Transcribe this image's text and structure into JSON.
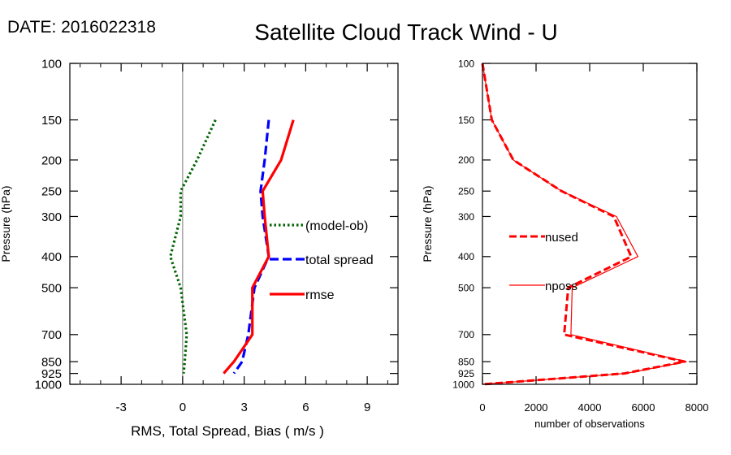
{
  "date_label": "DATE: 2016022318",
  "title": "Satellite Cloud Track Wind - U",
  "colors": {
    "model_ob": "#006400",
    "total_spread": "#0000ff",
    "rmse": "#ff0000",
    "zero_line": "#999999"
  },
  "chart_data": [
    {
      "type": "line",
      "name": "left-panel",
      "xlabel": "RMS, Total Spread, Bias ( m/s )",
      "ylabel": "Pressure (hPa)",
      "xlim": [
        -5.5,
        10.5
      ],
      "ylim": [
        1000,
        100
      ],
      "yscale": "log",
      "xticks": [
        -3,
        0,
        3,
        6,
        9
      ],
      "xtick_labels": [
        "-3",
        "0",
        "3",
        "6",
        "9"
      ],
      "yticks": [
        100,
        150,
        200,
        250,
        300,
        400,
        500,
        700,
        850,
        925,
        1000
      ],
      "ytick_labels": [
        "100",
        "150",
        "200",
        "250",
        "300",
        "400",
        "500",
        "700",
        "850",
        "925",
        "1000"
      ],
      "zero_line": 0,
      "legend": [
        "(model-ob)",
        "total spread",
        "rmse"
      ],
      "series": [
        {
          "name": "(model-ob)",
          "style": "dotted",
          "pressure": [
            150,
            200,
            250,
            300,
            400,
            500,
            700,
            850,
            925
          ],
          "values": [
            1.6,
            0.7,
            -0.1,
            -0.1,
            -0.6,
            -0.1,
            0.2,
            0.1,
            0.05
          ]
        },
        {
          "name": "total spread",
          "style": "dashed",
          "pressure": [
            150,
            200,
            250,
            300,
            400,
            500,
            700,
            850,
            925
          ],
          "values": [
            4.2,
            4.0,
            3.8,
            3.9,
            4.2,
            3.5,
            3.2,
            2.9,
            2.5
          ]
        },
        {
          "name": "rmse",
          "style": "solid",
          "pressure": [
            150,
            200,
            250,
            300,
            400,
            500,
            700,
            850,
            925
          ],
          "values": [
            5.4,
            4.8,
            3.9,
            4.0,
            4.2,
            3.4,
            3.4,
            2.5,
            2.0
          ]
        }
      ]
    },
    {
      "type": "line",
      "name": "right-panel",
      "xlabel": "number of observations",
      "ylabel": "Pressure (hPa)",
      "xlim": [
        0,
        8000
      ],
      "ylim": [
        1000,
        100
      ],
      "yscale": "log",
      "xticks": [
        0,
        2000,
        4000,
        6000,
        8000
      ],
      "xtick_labels": [
        "0",
        "2000",
        "4000",
        "6000",
        "8000"
      ],
      "yticks": [
        100,
        150,
        200,
        250,
        300,
        400,
        500,
        700,
        850,
        925,
        1000
      ],
      "ytick_labels": [
        "100",
        "150",
        "200",
        "250",
        "300",
        "400",
        "500",
        "700",
        "850",
        "925",
        "1000"
      ],
      "legend": [
        "nused",
        "nposs"
      ],
      "series": [
        {
          "name": "nused",
          "style": "dashed",
          "pressure": [
            100,
            150,
            200,
            250,
            300,
            400,
            500,
            700,
            850,
            925,
            1000
          ],
          "values": [
            0,
            350,
            1150,
            2950,
            4900,
            5550,
            3200,
            3050,
            7550,
            5300,
            0
          ]
        },
        {
          "name": "nposs",
          "style": "thin",
          "pressure": [
            100,
            150,
            200,
            250,
            300,
            400,
            500,
            700,
            850,
            925,
            1000
          ],
          "values": [
            0,
            350,
            1150,
            2950,
            5000,
            5800,
            3350,
            3300,
            7600,
            5350,
            0
          ]
        }
      ]
    }
  ]
}
